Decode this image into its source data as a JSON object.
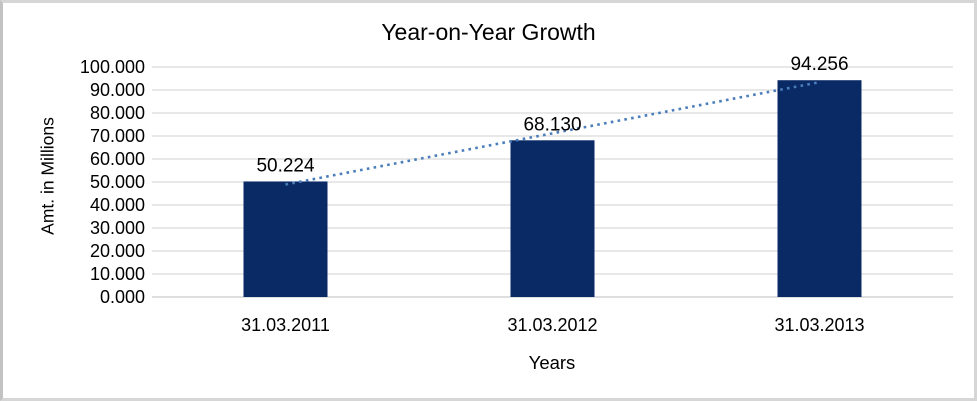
{
  "chart_data": {
    "type": "bar",
    "title": "Year-on-Year Growth",
    "xlabel": "Years",
    "ylabel": "Amt. in Millions",
    "categories": [
      "31.03.2011",
      "31.03.2012",
      "31.03.2013"
    ],
    "values": [
      50.224,
      68.13,
      94.256
    ],
    "data_labels": [
      "50.224",
      "68.130",
      "94.256"
    ],
    "yticks": [
      "0.000",
      "10.000",
      "20.000",
      "30.000",
      "40.000",
      "50.000",
      "60.000",
      "70.000",
      "80.000",
      "90.000",
      "100.000"
    ],
    "ylim": [
      0,
      100
    ],
    "grid": true,
    "legend": false,
    "trendline": {
      "type": "linear",
      "style": "dotted",
      "color": "#4a7ebb"
    },
    "colors": {
      "bar": "#0a2a66",
      "gridline": "#d9d9d9",
      "axisline": "#c9c9c9",
      "border": "#d6d6d6",
      "text": "#000000",
      "background": "#ffffff"
    }
  }
}
